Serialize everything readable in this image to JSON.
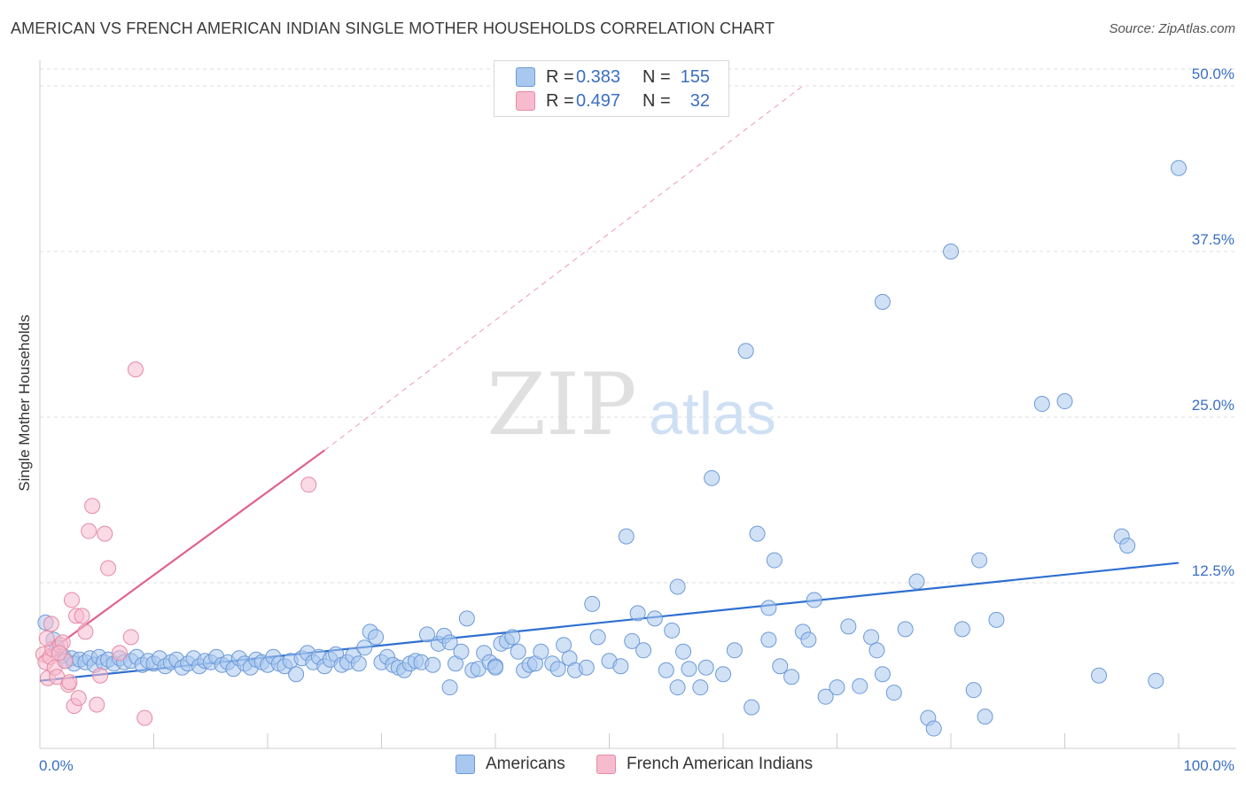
{
  "title": "AMERICAN VS FRENCH AMERICAN INDIAN SINGLE MOTHER HOUSEHOLDS CORRELATION CHART",
  "source": "Source: ZipAtlas.com",
  "watermark": {
    "zip": "ZIP",
    "atlas": "atlas"
  },
  "legend": {
    "r_label": "R =",
    "n_label": "N =",
    "rows": [
      {
        "name": "Americans",
        "r": "0.383",
        "n": "155",
        "color": "#a9c8ef",
        "border": "#6d9ad8"
      },
      {
        "name": "French American Indians",
        "r": "0.497",
        "n": "32",
        "color": "#f6bccd",
        "border": "#e68aa6"
      }
    ]
  },
  "chart_data": {
    "type": "scatter",
    "title": "AMERICAN VS FRENCH AMERICAN INDIAN SINGLE MOTHER HOUSEHOLDS CORRELATION CHART",
    "xlabel": "",
    "ylabel": "Single Mother Households",
    "xlim": [
      0,
      100
    ],
    "ylim": [
      0,
      52
    ],
    "x_ticks": [
      "0.0%",
      "100.0%"
    ],
    "y_ticks": [
      {
        "value": 12.5,
        "label": "12.5%"
      },
      {
        "value": 25.0,
        "label": "25.0%"
      },
      {
        "value": 37.5,
        "label": "37.5%"
      },
      {
        "value": 50.0,
        "label": "50.0%"
      }
    ],
    "grid": true,
    "series": [
      {
        "name": "Americans",
        "color": "#6d9ad8",
        "fill": "#a9c8ef",
        "trend": {
          "x": [
            0,
            100
          ],
          "y": [
            5.1,
            14.0
          ]
        },
        "points": [
          [
            0.5,
            9.5
          ],
          [
            1.2,
            8.2
          ],
          [
            1.5,
            7.6
          ],
          [
            2,
            7.0
          ],
          [
            2.3,
            6.6
          ],
          [
            2.8,
            6.8
          ],
          [
            3,
            6.4
          ],
          [
            3.5,
            6.7
          ],
          [
            4,
            6.5
          ],
          [
            4.4,
            6.8
          ],
          [
            4.8,
            6.3
          ],
          [
            5.2,
            6.9
          ],
          [
            5.6,
            6.5
          ],
          [
            6,
            6.7
          ],
          [
            6.5,
            6.4
          ],
          [
            7,
            6.8
          ],
          [
            7.4,
            6.5
          ],
          [
            8,
            6.6
          ],
          [
            8.5,
            6.9
          ],
          [
            9,
            6.3
          ],
          [
            9.5,
            6.6
          ],
          [
            10,
            6.4
          ],
          [
            10.5,
            6.8
          ],
          [
            11,
            6.2
          ],
          [
            11.5,
            6.5
          ],
          [
            12,
            6.7
          ],
          [
            12.5,
            6.1
          ],
          [
            13,
            6.4
          ],
          [
            13.5,
            6.8
          ],
          [
            14,
            6.2
          ],
          [
            14.5,
            6.6
          ],
          [
            15,
            6.5
          ],
          [
            15.5,
            6.9
          ],
          [
            16,
            6.3
          ],
          [
            16.5,
            6.5
          ],
          [
            17,
            6.0
          ],
          [
            17.5,
            6.8
          ],
          [
            18,
            6.4
          ],
          [
            18.5,
            6.1
          ],
          [
            19,
            6.7
          ],
          [
            19.5,
            6.5
          ],
          [
            20,
            6.3
          ],
          [
            20.5,
            6.9
          ],
          [
            21,
            6.4
          ],
          [
            21.5,
            6.2
          ],
          [
            22,
            6.6
          ],
          [
            22.5,
            5.6
          ],
          [
            23,
            6.8
          ],
          [
            23.5,
            7.2
          ],
          [
            24,
            6.5
          ],
          [
            24.5,
            6.9
          ],
          [
            25,
            6.2
          ],
          [
            25.5,
            6.7
          ],
          [
            26,
            7.1
          ],
          [
            26.5,
            6.3
          ],
          [
            27,
            6.5
          ],
          [
            27.5,
            7.0
          ],
          [
            28,
            6.4
          ],
          [
            28.5,
            7.6
          ],
          [
            29,
            8.8
          ],
          [
            29.5,
            8.4
          ],
          [
            30,
            6.5
          ],
          [
            30.5,
            6.9
          ],
          [
            31,
            6.3
          ],
          [
            31.5,
            6.1
          ],
          [
            32,
            5.9
          ],
          [
            32.5,
            6.4
          ],
          [
            33,
            6.6
          ],
          [
            33.5,
            6.5
          ],
          [
            34,
            8.6
          ],
          [
            34.5,
            6.3
          ],
          [
            35,
            7.9
          ],
          [
            35.5,
            8.5
          ],
          [
            36,
            8.0
          ],
          [
            36.5,
            6.4
          ],
          [
            37,
            7.3
          ],
          [
            37.5,
            9.8
          ],
          [
            38,
            5.9
          ],
          [
            38.5,
            6.0
          ],
          [
            39,
            7.2
          ],
          [
            39.5,
            6.5
          ],
          [
            40,
            6.2
          ],
          [
            40.5,
            7.9
          ],
          [
            41,
            8.1
          ],
          [
            41.5,
            8.4
          ],
          [
            42,
            7.3
          ],
          [
            42.5,
            5.9
          ],
          [
            43,
            6.3
          ],
          [
            43.5,
            6.4
          ],
          [
            44,
            7.3
          ],
          [
            45,
            6.4
          ],
          [
            45.5,
            6.0
          ],
          [
            46,
            7.8
          ],
          [
            46.5,
            6.8
          ],
          [
            47,
            5.9
          ],
          [
            48,
            6.1
          ],
          [
            48.5,
            10.9
          ],
          [
            49,
            8.4
          ],
          [
            50,
            6.6
          ],
          [
            51,
            6.2
          ],
          [
            51.5,
            16.0
          ],
          [
            52,
            8.1
          ],
          [
            52.5,
            10.2
          ],
          [
            53,
            7.4
          ],
          [
            54,
            9.8
          ],
          [
            55,
            5.9
          ],
          [
            55.5,
            8.9
          ],
          [
            56,
            12.2
          ],
          [
            56.5,
            7.3
          ],
          [
            57,
            6.0
          ],
          [
            58,
            4.6
          ],
          [
            58.5,
            6.1
          ],
          [
            59,
            20.4
          ],
          [
            60,
            5.6
          ],
          [
            61,
            7.4
          ],
          [
            62,
            30.0
          ],
          [
            62.5,
            3.1
          ],
          [
            63,
            16.2
          ],
          [
            64,
            10.6
          ],
          [
            64.5,
            14.2
          ],
          [
            65,
            6.2
          ],
          [
            66,
            5.4
          ],
          [
            67,
            8.8
          ],
          [
            67.5,
            8.2
          ],
          [
            68,
            11.2
          ],
          [
            69,
            3.9
          ],
          [
            70,
            4.6
          ],
          [
            71,
            9.2
          ],
          [
            72,
            4.7
          ],
          [
            73,
            8.4
          ],
          [
            73.5,
            7.4
          ],
          [
            74,
            5.6
          ],
          [
            75,
            4.2
          ],
          [
            76,
            9.0
          ],
          [
            77,
            12.6
          ],
          [
            78,
            2.3
          ],
          [
            78.5,
            1.5
          ],
          [
            80,
            37.5
          ],
          [
            81,
            9.0
          ],
          [
            82,
            4.4
          ],
          [
            82.5,
            14.2
          ],
          [
            83,
            2.4
          ],
          [
            84,
            9.7
          ],
          [
            88,
            26.0
          ],
          [
            90,
            26.2
          ],
          [
            93,
            5.5
          ],
          [
            95,
            16.0
          ],
          [
            95.5,
            15.3
          ],
          [
            98,
            5.1
          ],
          [
            100,
            43.8
          ],
          [
            74,
            33.7
          ],
          [
            56,
            4.6
          ],
          [
            40,
            6.1
          ],
          [
            36,
            4.6
          ],
          [
            64,
            8.2
          ]
        ]
      },
      {
        "name": "French American Indians",
        "color": "#e68aa6",
        "fill": "#f6bccd",
        "trend": {
          "x": [
            0,
            25
          ],
          "y": [
            6.8,
            22.5
          ],
          "extend_to": [
            67,
            50
          ]
        },
        "points": [
          [
            0.3,
            7.1
          ],
          [
            0.5,
            6.5
          ],
          [
            0.7,
            5.3
          ],
          [
            0.9,
            6.9
          ],
          [
            1.0,
            9.4
          ],
          [
            1.1,
            7.5
          ],
          [
            1.3,
            6.1
          ],
          [
            1.5,
            5.4
          ],
          [
            1.8,
            7.8
          ],
          [
            2.0,
            8.0
          ],
          [
            2.2,
            6.6
          ],
          [
            2.5,
            4.8
          ],
          [
            2.8,
            11.2
          ],
          [
            3.0,
            3.2
          ],
          [
            3.2,
            10.0
          ],
          [
            3.4,
            3.8
          ],
          [
            3.7,
            10.0
          ],
          [
            4.0,
            8.8
          ],
          [
            4.3,
            16.4
          ],
          [
            4.6,
            18.3
          ],
          [
            5.0,
            3.3
          ],
          [
            5.3,
            5.5
          ],
          [
            5.7,
            16.2
          ],
          [
            6.0,
            13.6
          ],
          [
            7.0,
            7.2
          ],
          [
            8.0,
            8.4
          ],
          [
            8.4,
            28.6
          ],
          [
            9.2,
            2.3
          ],
          [
            23.6,
            19.9
          ],
          [
            1.7,
            7.2
          ],
          [
            0.6,
            8.3
          ],
          [
            2.6,
            5.0
          ]
        ]
      }
    ]
  }
}
